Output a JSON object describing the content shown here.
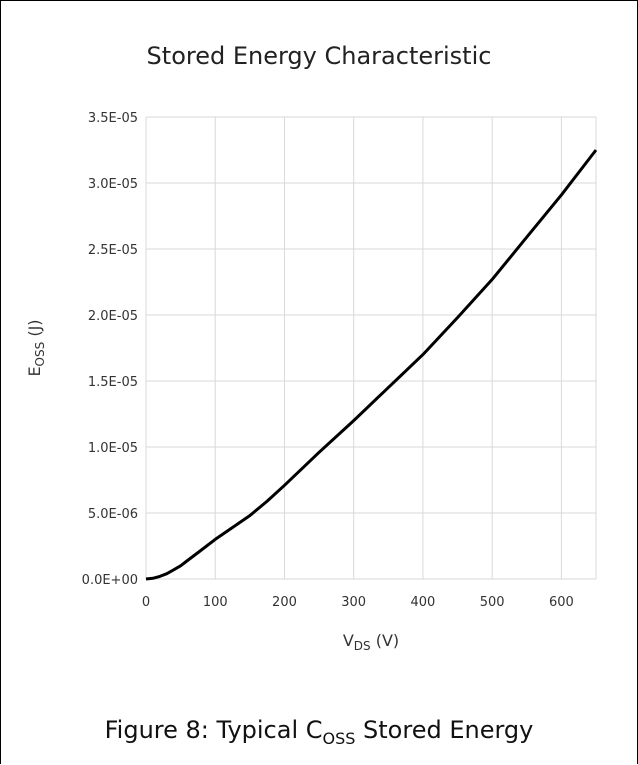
{
  "chart_data": {
    "type": "line",
    "title": "Stored Energy Characteristic",
    "xlabel": {
      "main": "V",
      "sub": "DS",
      "unit": " (V)"
    },
    "ylabel": {
      "main": "E",
      "sub": "OSS",
      "unit": " (J)"
    },
    "xlim": [
      0,
      650
    ],
    "ylim": [
      0,
      3.5e-05
    ],
    "x_ticks": [
      0,
      100,
      200,
      300,
      400,
      500,
      600
    ],
    "x_tick_labels": [
      "0",
      "100",
      "200",
      "300",
      "400",
      "500",
      "600"
    ],
    "y_ticks": [
      0,
      5e-06,
      1e-05,
      1.5e-05,
      2e-05,
      2.5e-05,
      3e-05,
      3.5e-05
    ],
    "y_tick_labels": [
      "0.0E+00",
      "5.0E-06",
      "1.0E-05",
      "1.5E-05",
      "2.0E-05",
      "2.5E-05",
      "3.0E-05",
      "3.5E-05"
    ],
    "grid": true,
    "series_color": "#000000",
    "series": [
      {
        "x": [
          0,
          10,
          20,
          30,
          40,
          50,
          60,
          80,
          100,
          125,
          150,
          175,
          200,
          250,
          300,
          350,
          400,
          450,
          500,
          550,
          600,
          650
        ],
        "y": [
          0,
          5e-08,
          2e-07,
          4e-07,
          7e-07,
          1e-06,
          1.4e-06,
          2.2e-06,
          3e-06,
          3.9e-06,
          4.8e-06,
          5.9e-06,
          7.1e-06,
          9.6e-06,
          1.2e-05,
          1.45e-05,
          1.7e-05,
          1.98e-05,
          2.27e-05,
          2.59e-05,
          2.91e-05,
          3.25e-05
        ]
      }
    ]
  },
  "caption": {
    "prefix": "Figure 8: Typical C",
    "sub": "OSS",
    "suffix": " Stored Energy"
  }
}
